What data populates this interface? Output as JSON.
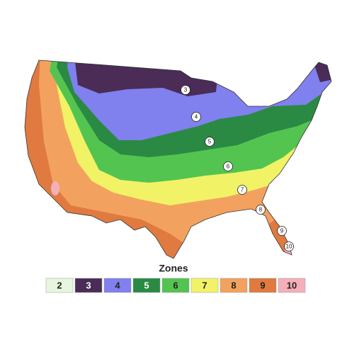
{
  "legend": {
    "title": "Zones",
    "items": [
      {
        "label": "2",
        "color": "#e6f7dd"
      },
      {
        "label": "3",
        "color": "#4a2c57"
      },
      {
        "label": "4",
        "color": "#8080ee"
      },
      {
        "label": "5",
        "color": "#2a8a44"
      },
      {
        "label": "6",
        "color": "#54c451"
      },
      {
        "label": "7",
        "color": "#f2f266"
      },
      {
        "label": "8",
        "color": "#f2a25e"
      },
      {
        "label": "9",
        "color": "#e07a40"
      },
      {
        "label": "10",
        "color": "#f4b0b8"
      }
    ]
  },
  "map_labels": [
    "3",
    "4",
    "5",
    "6",
    "7",
    "8",
    "9",
    "10"
  ]
}
